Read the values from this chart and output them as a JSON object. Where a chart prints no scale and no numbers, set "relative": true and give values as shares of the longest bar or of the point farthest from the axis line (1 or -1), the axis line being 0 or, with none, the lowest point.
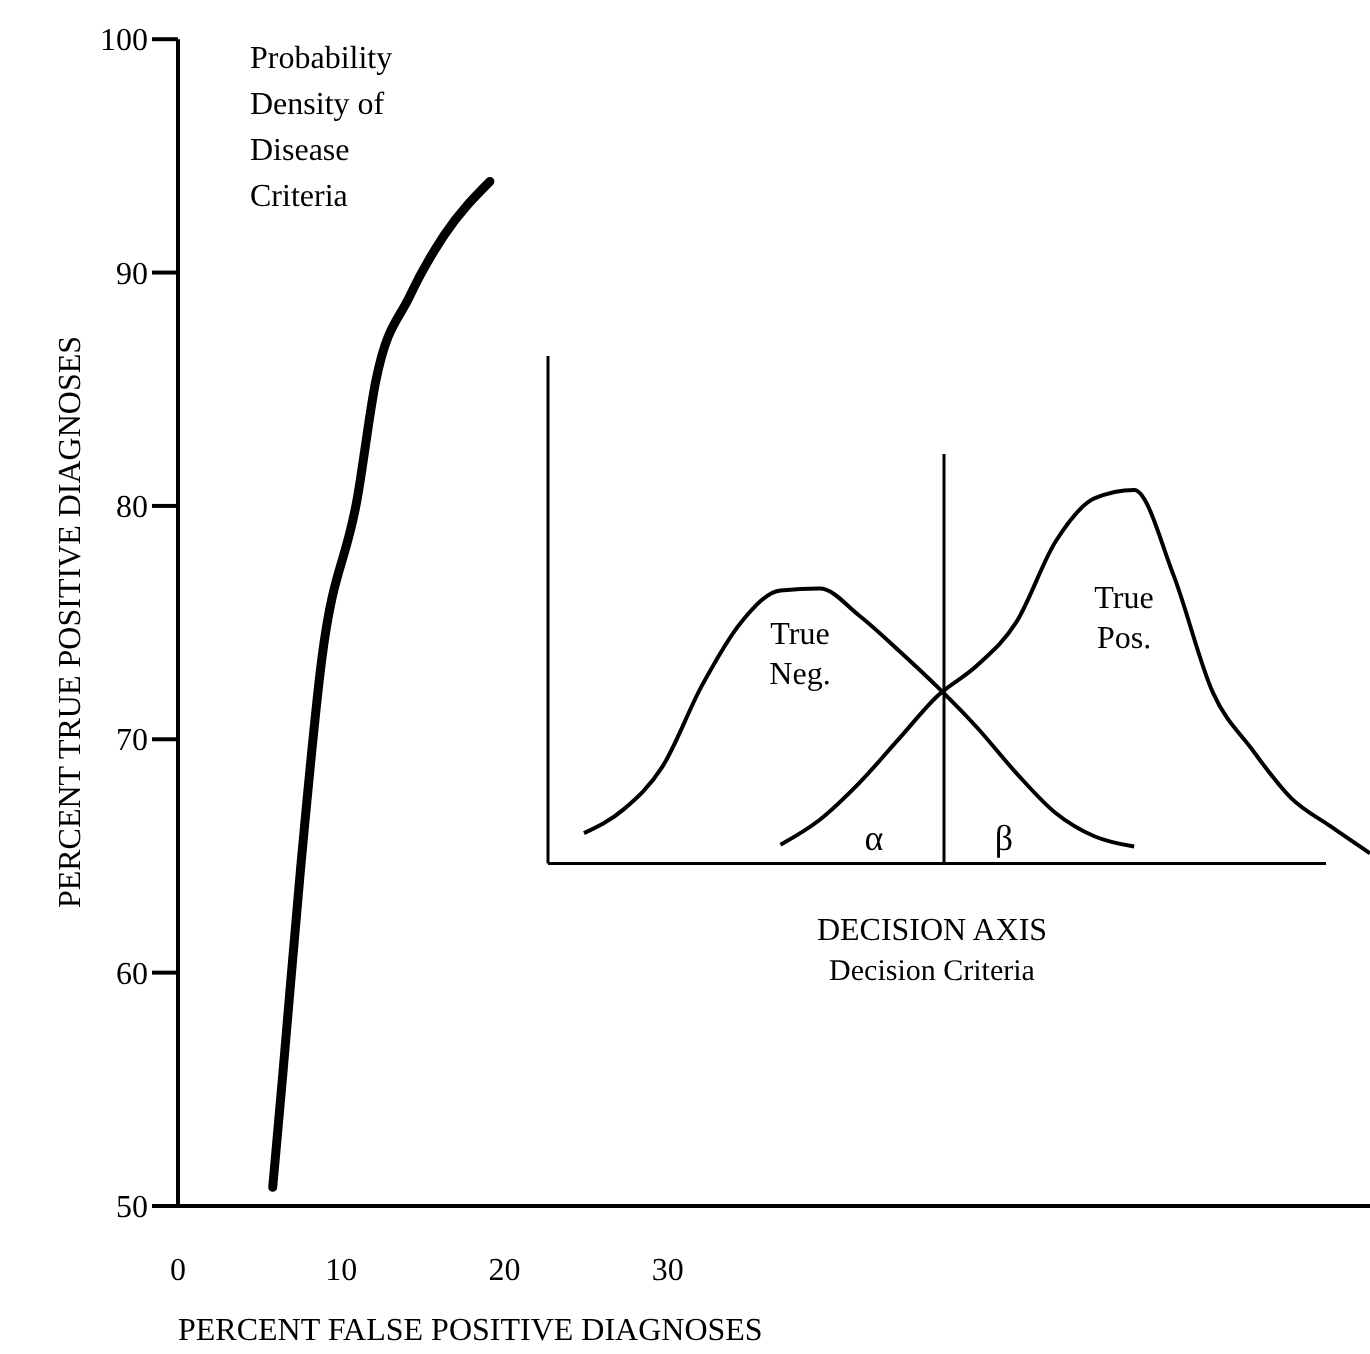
{
  "chart_data": [
    {
      "type": "line",
      "xlabel": "PERCENT FALSE POSITIVE DIAGNOSES",
      "ylabel": "PERCENT TRUE POSITIVE DIAGNOSES",
      "xlim": [
        0,
        73
      ],
      "xticks": [
        0,
        10,
        20,
        30
      ],
      "ylim": [
        50,
        100
      ],
      "yticks": [
        50,
        60,
        70,
        80,
        90,
        100
      ],
      "grid": false,
      "line_style": "solid",
      "annotations": [
        "Probability\nDensity of\nDisease\nCriteria"
      ],
      "series": [
        {
          "color": "#000000",
          "x": [
            5.8,
            6.4,
            7.5,
            8.8,
            11.0,
            12.1,
            14.2,
            16.3,
            19.1
          ],
          "values": [
            50.8,
            55.5,
            64.4,
            73.4,
            80.4,
            85.3,
            89.0,
            91.6,
            93.9
          ]
        }
      ]
    },
    {
      "type": "line",
      "relative": true,
      "xlabel": "DECISION AXIS\nDecision Criteria",
      "line_style": "solid",
      "categories": [
        null,
        null,
        null,
        null,
        null,
        null,
        null,
        null,
        null,
        null,
        null,
        null,
        null,
        null,
        null,
        null,
        null,
        null,
        null,
        null,
        null
      ],
      "annotations": [
        "True\nNeg.",
        "True\nPos.",
        "α",
        "β"
      ],
      "series": [
        {
          "color": "#000000",
          "values": [
            0.081,
            0.144,
            0.26,
            0.476,
            0.646,
            0.731,
            0.736,
            0.664,
            0.571,
            0.472,
            0.364,
            0.242,
            0.135,
            0.072,
            0.045,
            null,
            null,
            null,
            null,
            null,
            null
          ]
        },
        {
          "color": "#000000",
          "values": [
            null,
            null,
            null,
            null,
            null,
            0.05,
            0.117,
            0.215,
            0.332,
            0.449,
            0.53,
            0.646,
            0.862,
            0.978,
            1,
            0.772,
            0.458,
            0.305,
            0.174,
            0.099,
            0.027
          ]
        }
      ]
    }
  ]
}
